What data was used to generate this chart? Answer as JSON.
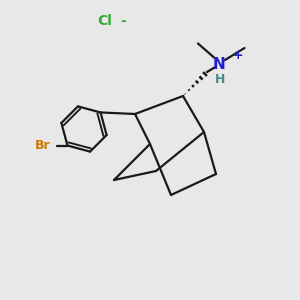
{
  "background_color": "#e8e8e8",
  "line_color": "#1a1a1a",
  "br_color": "#cc7700",
  "n_color": "#2020cc",
  "h_color": "#448888",
  "cl_color": "#33aa33",
  "cl_label": "Cl",
  "cl_minus": "-",
  "n_label": "N",
  "h_label": "H",
  "plus_label": "+",
  "br_label": "Br",
  "line_width": 1.6,
  "figsize": [
    3.0,
    3.0
  ],
  "dpi": 100
}
